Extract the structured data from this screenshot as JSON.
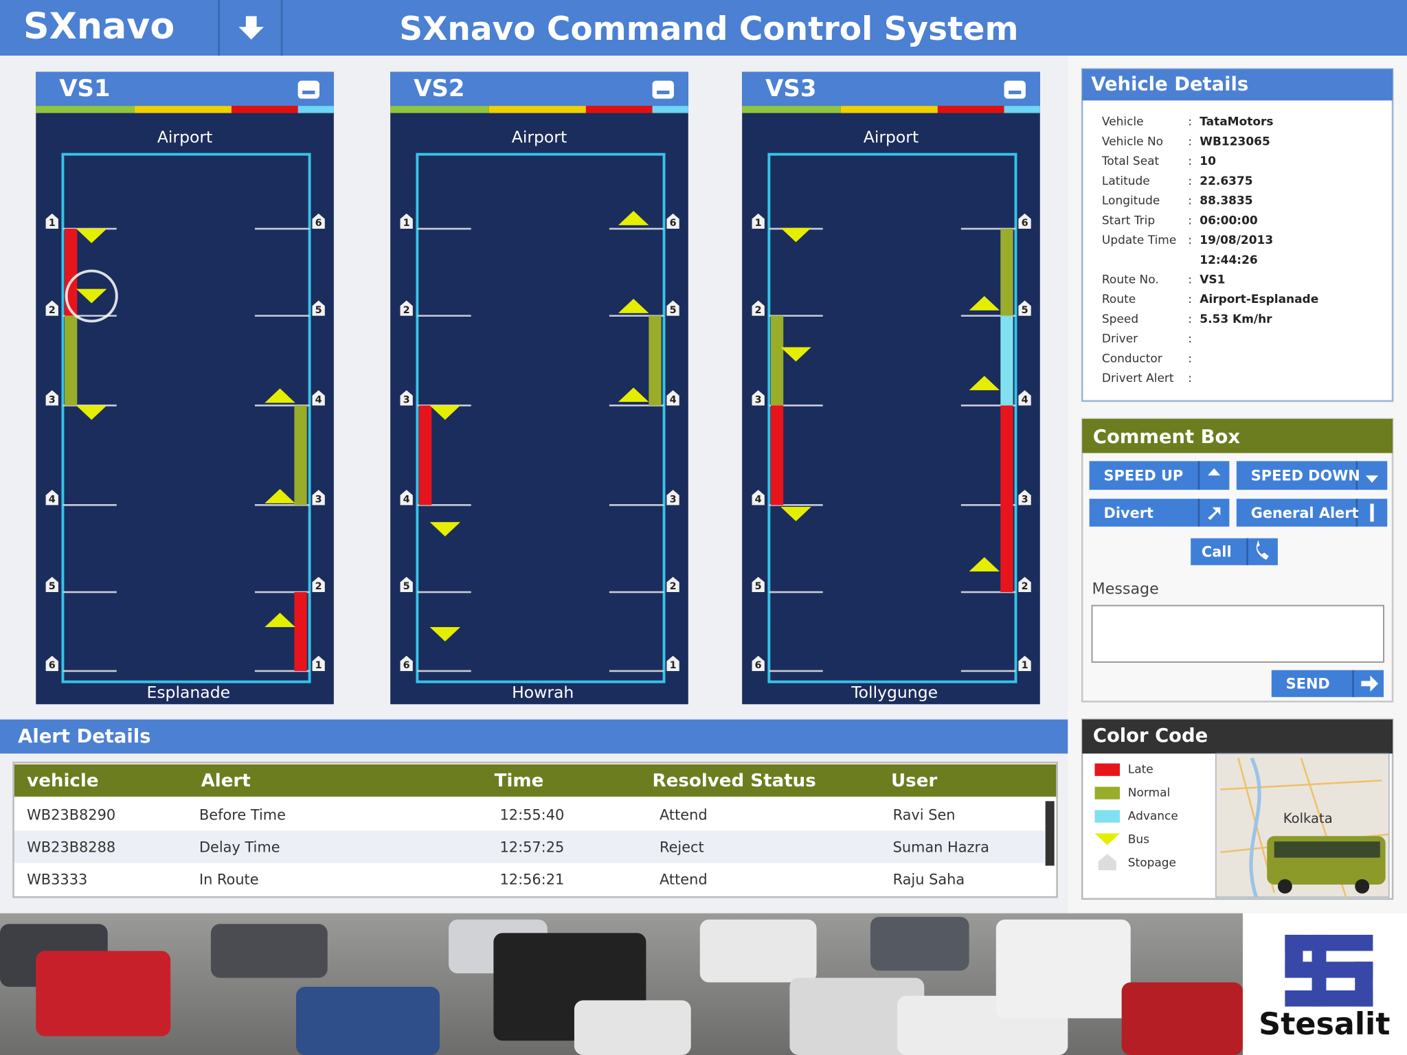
{
  "header": {
    "logo": "SXnavo",
    "title": "SXnavo Command Control System"
  },
  "panels": [
    {
      "name": "VS1",
      "from": "Airport",
      "to": "Esplanade",
      "left_stops": [
        1,
        2,
        3,
        4,
        5,
        6
      ],
      "right_stops": [
        6,
        5,
        4,
        3,
        2,
        1
      ]
    },
    {
      "name": "VS2",
      "from": "Airport",
      "to": "Howrah",
      "left_stops": [
        1,
        2,
        3,
        4,
        5,
        6
      ],
      "right_stops": [
        6,
        5,
        4,
        3,
        2,
        1
      ]
    },
    {
      "name": "VS3",
      "from": "Airport",
      "to": "Tollygunge",
      "left_stops": [
        1,
        2,
        3,
        4,
        5,
        6
      ],
      "right_stops": [
        6,
        5,
        4,
        3,
        2,
        1
      ]
    }
  ],
  "vehicle_details": {
    "title": "Vehicle Details",
    "separator": ":",
    "fields": [
      {
        "label": "Vehicle",
        "value": "TataMotors"
      },
      {
        "label": "Vehicle No",
        "value": "WB123065"
      },
      {
        "label": "Total Seat",
        "value": "10"
      },
      {
        "label": "Latitude",
        "value": "22.6375"
      },
      {
        "label": "Longitude",
        "value": "88.3835"
      },
      {
        "label": "Start Trip",
        "value": "06:00:00"
      },
      {
        "label": "Update Time",
        "value": [
          "19/08/2013",
          "12:44:26"
        ]
      },
      {
        "label": "Route No.",
        "value": "VS1"
      },
      {
        "label": "Route",
        "value": "Airport-Esplanade"
      },
      {
        "label": "Speed",
        "value": "5.53 Km/hr"
      },
      {
        "label": "Driver"
      },
      {
        "label": "Conductor"
      },
      {
        "label": "Drivert Alert"
      }
    ]
  },
  "comment_box": {
    "title": "Comment Box",
    "buttons": [
      "SPEED UP",
      "SPEED DOWN",
      "Divert",
      "General Alert",
      "Call"
    ],
    "message_label": "Message",
    "send": "SEND"
  },
  "alert_details": {
    "title": "Alert Details",
    "columns": [
      "vehicle",
      "Alert",
      "Time",
      "Resolved Status",
      "User"
    ],
    "rows": [
      [
        "WB23B8290",
        "Before Time",
        "12:55:40",
        "Attend",
        "Ravi Sen"
      ],
      [
        "WB23B8288",
        "Delay Time",
        "12:57:25",
        "Reject",
        "Suman Hazra"
      ],
      [
        "WB3333",
        "In Route",
        "12:56:21",
        "Attend",
        "Raju Saha"
      ]
    ]
  },
  "color_code": {
    "title": "Color Code",
    "items": [
      "Late",
      "Normal",
      "Advance",
      "Bus",
      "Stopage"
    ],
    "map_label": "Kolkata"
  },
  "brand": "Stesalit"
}
